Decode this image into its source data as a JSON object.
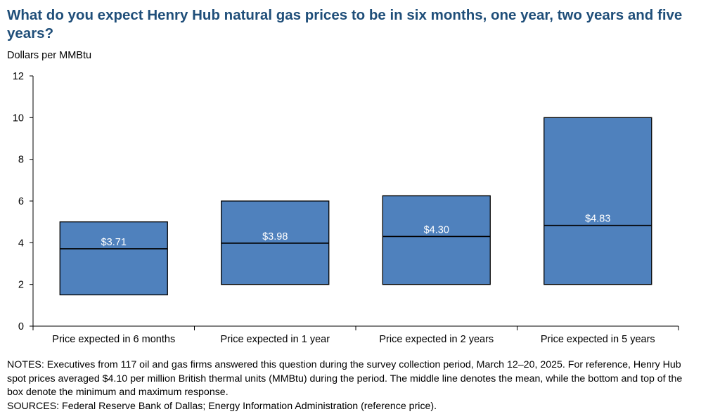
{
  "title": "What do you expect Henry Hub natural gas prices to be in six months, one year, two years and five years?",
  "colors": {
    "box": "#4f81bd",
    "title": "#1f4e79",
    "line": "#000000",
    "label": "#ffffff"
  },
  "chart_data": {
    "type": "box",
    "ylabel": "Dollars per MMBtu",
    "ylim": [
      0,
      12
    ],
    "yticks": [
      "0",
      "2",
      "4",
      "6",
      "8",
      "10",
      "12"
    ],
    "categories": [
      "Price expected in 6 months",
      "Price expected in 1 year",
      "Price expected in 2 years",
      "Price expected in 5 years"
    ],
    "min": [
      1.5,
      2.0,
      2.0,
      2.0
    ],
    "max": [
      5.0,
      6.0,
      6.25,
      10.0
    ],
    "mean": [
      3.71,
      3.98,
      4.3,
      4.83
    ],
    "mean_labels": [
      "$3.71",
      "$3.98",
      "$4.30",
      "$4.83"
    ]
  },
  "notes": {
    "notes": "NOTES: Executives from 117 oil and gas firms answered this question during the survey collection period, March 12–20, 2025. For reference, Henry Hub spot prices averaged $4.10 per million British thermal units (MMBtu) during the period. The middle line denotes the mean, while the bottom and top of the box denote the minimum and maximum response.",
    "sources": "SOURCES: Federal Reserve Bank of Dallas; Energy Information Administration (reference price)."
  }
}
